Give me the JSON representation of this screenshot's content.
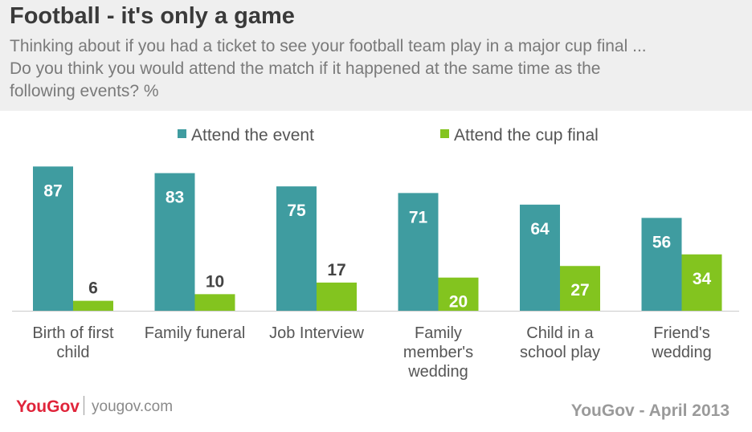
{
  "header": {
    "title": "Football - it's only a game",
    "subtitle_lines": [
      "Thinking about if you had a ticket to see your football team play in a major cup final ...",
      "Do you think you would attend the match if it happened at the same time as the",
      "following events? %"
    ]
  },
  "footer": {
    "logo": "YouGov",
    "site": "yougov.com",
    "source": "YouGov - April 2013"
  },
  "chart_data": {
    "type": "bar",
    "title": "Football - it's only a game",
    "categories": [
      [
        "Birth of first",
        "child"
      ],
      [
        "Family funeral"
      ],
      [
        "Job Interview"
      ],
      [
        "Family",
        "member's",
        "wedding"
      ],
      [
        "Child in a",
        "school play"
      ],
      [
        "Friend's",
        "wedding"
      ]
    ],
    "series": [
      {
        "name": "Attend the event",
        "color": "#3f9ca0",
        "values": [
          87,
          83,
          75,
          71,
          64,
          56
        ]
      },
      {
        "name": "Attend the cup final",
        "color": "#83c41f",
        "values": [
          6,
          10,
          17,
          20,
          27,
          34
        ]
      }
    ],
    "ylim": [
      0,
      100
    ],
    "grid": false,
    "legend": "top",
    "colors": {
      "label_on_bar": "#ffffff",
      "label_outside": "#444444",
      "axis": "#cccccc",
      "category_text": "#555555"
    }
  }
}
